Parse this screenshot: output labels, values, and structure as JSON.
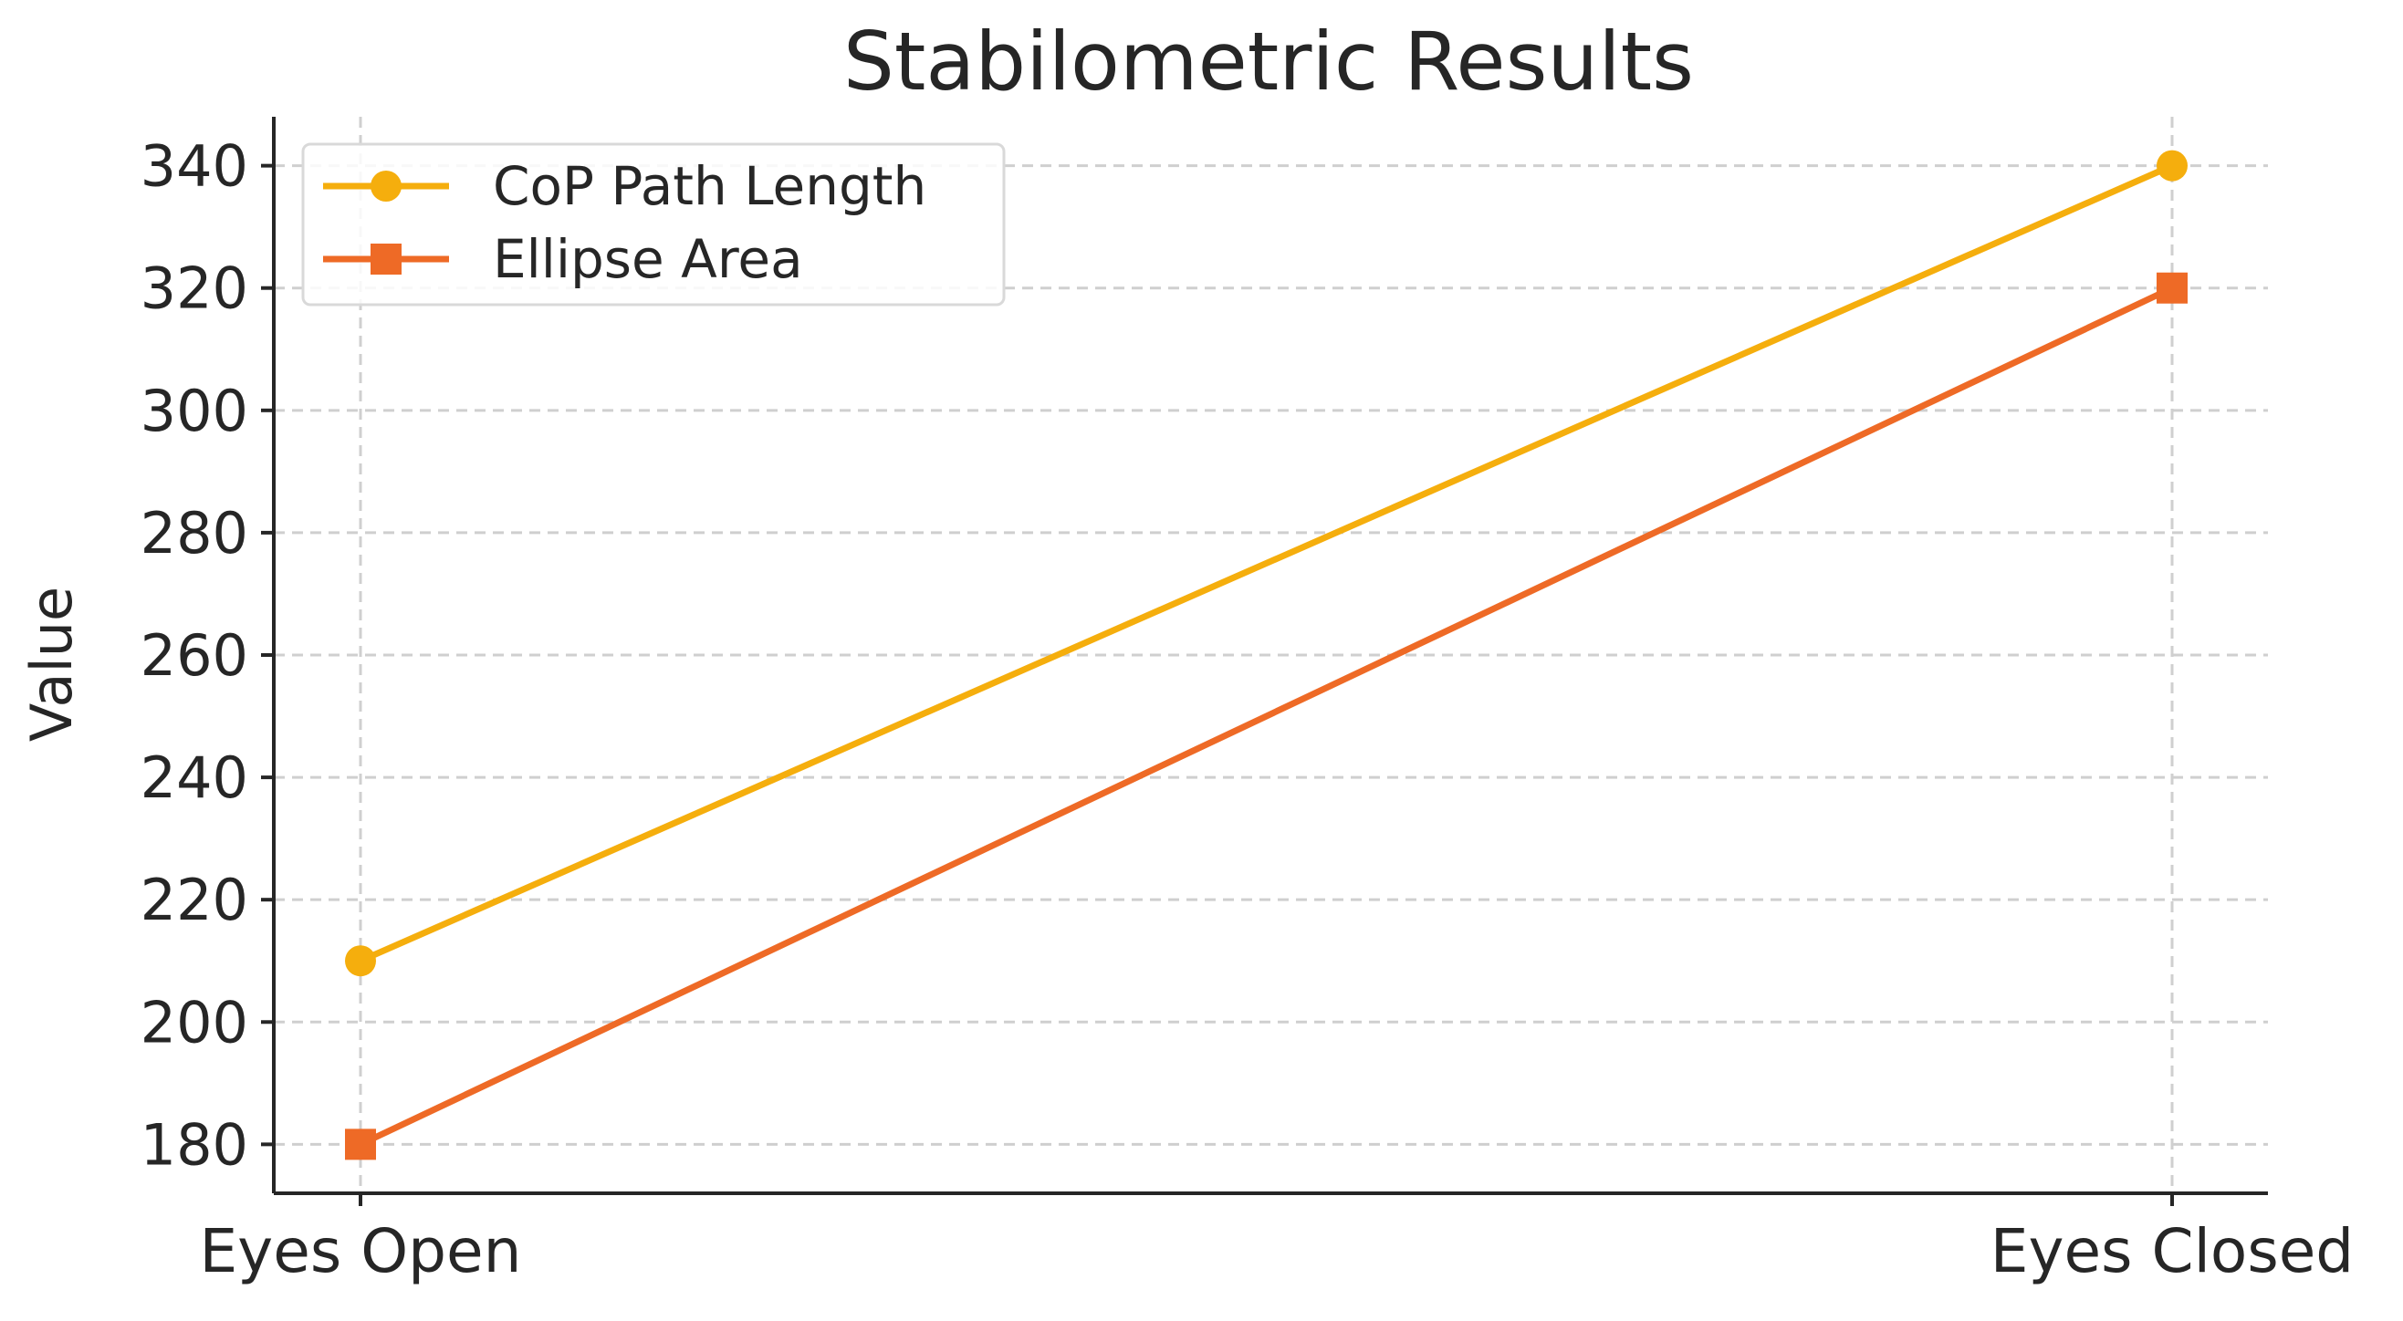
{
  "chart_data": {
    "type": "line",
    "title": "Stabilometric Results",
    "xlabel": "",
    "ylabel": "Value",
    "categories": [
      "Eyes Open",
      "Eyes Closed"
    ],
    "ylim": [
      172,
      348
    ],
    "yticks": [
      180,
      200,
      220,
      240,
      260,
      280,
      300,
      320,
      340
    ],
    "grid": true,
    "legend_position": "top-left",
    "series": [
      {
        "name": "CoP Path Length",
        "values": [
          210,
          340
        ],
        "color": "#F5AE0D",
        "marker": "circle"
      },
      {
        "name": "Ellipse Area",
        "values": [
          180,
          320
        ],
        "color": "#EE6A26",
        "marker": "square"
      }
    ]
  }
}
